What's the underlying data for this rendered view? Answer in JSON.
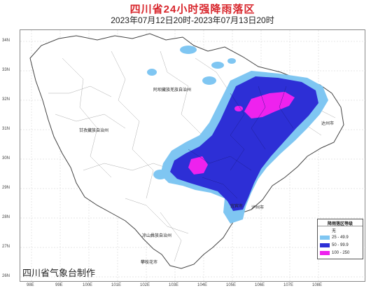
{
  "title": "四川省24小时强降雨落区",
  "subtitle": "2023年07月12日20时-2023年07月13日20时",
  "credit": "四川省气象台制作",
  "legend": {
    "title": "降雨落区等级",
    "items": [
      {
        "label": "无",
        "color": "#ffffff"
      },
      {
        "label": "25 - 49.9",
        "color": "#7fc6f2"
      },
      {
        "label": "50 - 99.9",
        "color": "#2d2fd6"
      },
      {
        "label": "100 - 250",
        "color": "#ee22ee"
      }
    ]
  },
  "lat_labels": [
    "34N",
    "33N",
    "32N",
    "31N",
    "30N",
    "29N",
    "28N",
    "27N",
    "26N"
  ],
  "lon_labels": [
    "98E",
    "99E",
    "100E",
    "101E",
    "102E",
    "103E",
    "104E",
    "105E",
    "106E",
    "107E",
    "108E"
  ],
  "places": {
    "aba": "阿坝藏族羌族自治州",
    "ganzi": "甘孜藏族自治州",
    "liangshan": "凉山彝族自治州",
    "dazhou": "达州市",
    "yibin": "宜宾市",
    "luzhou": "泸州市",
    "panzhihua": "攀枝花市"
  }
}
